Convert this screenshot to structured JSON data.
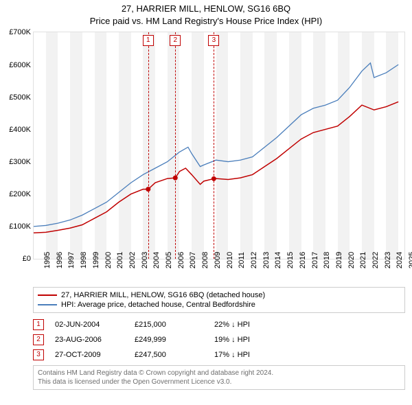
{
  "title": {
    "line1": "27, HARRIER MILL, HENLOW, SG16 6BQ",
    "line2": "Price paid vs. HM Land Registry's House Price Index (HPI)"
  },
  "chart": {
    "type": "line",
    "background_color": "#ffffff",
    "grid_color": "#e0e0e0",
    "shade_color": "#f2f2f2",
    "x": {
      "min": 1995,
      "max": 2025.5,
      "ticks": [
        1995,
        1996,
        1997,
        1998,
        1999,
        2000,
        2001,
        2002,
        2003,
        2004,
        2005,
        2006,
        2007,
        2008,
        2009,
        2010,
        2011,
        2012,
        2013,
        2014,
        2015,
        2016,
        2017,
        2018,
        2019,
        2020,
        2021,
        2022,
        2023,
        2024,
        2025
      ]
    },
    "y": {
      "min": 0,
      "max": 700000,
      "ticks": [
        0,
        100000,
        200000,
        300000,
        400000,
        500000,
        600000,
        700000
      ],
      "tick_labels": [
        "£0",
        "£100K",
        "£200K",
        "£300K",
        "£400K",
        "£500K",
        "£600K",
        "£700K"
      ]
    },
    "shaded_years": [
      1996,
      1998,
      2000,
      2002,
      2004,
      2006,
      2008,
      2010,
      2012,
      2014,
      2016,
      2018,
      2020,
      2022,
      2024
    ],
    "series": [
      {
        "name": "property",
        "color": "#c00000",
        "width": 1.5,
        "points": [
          [
            1995,
            80000
          ],
          [
            1996,
            82000
          ],
          [
            1997,
            88000
          ],
          [
            1998,
            95000
          ],
          [
            1999,
            105000
          ],
          [
            2000,
            125000
          ],
          [
            2001,
            145000
          ],
          [
            2002,
            175000
          ],
          [
            2003,
            200000
          ],
          [
            2004,
            215000
          ],
          [
            2004.42,
            215000
          ],
          [
            2005,
            235000
          ],
          [
            2006,
            248000
          ],
          [
            2006.65,
            249999
          ],
          [
            2007,
            270000
          ],
          [
            2007.5,
            280000
          ],
          [
            2008,
            260000
          ],
          [
            2008.7,
            230000
          ],
          [
            2009,
            240000
          ],
          [
            2009.82,
            247500
          ],
          [
            2010,
            248000
          ],
          [
            2011,
            245000
          ],
          [
            2012,
            250000
          ],
          [
            2013,
            260000
          ],
          [
            2014,
            285000
          ],
          [
            2015,
            310000
          ],
          [
            2016,
            340000
          ],
          [
            2017,
            370000
          ],
          [
            2018,
            390000
          ],
          [
            2019,
            400000
          ],
          [
            2020,
            410000
          ],
          [
            2021,
            440000
          ],
          [
            2022,
            475000
          ],
          [
            2023,
            460000
          ],
          [
            2024,
            470000
          ],
          [
            2025,
            485000
          ]
        ],
        "markers": [
          [
            2004.42,
            215000
          ],
          [
            2006.65,
            249999
          ],
          [
            2009.82,
            247500
          ]
        ]
      },
      {
        "name": "hpi",
        "color": "#4a7ebb",
        "width": 1.3,
        "points": [
          [
            1995,
            100000
          ],
          [
            1996,
            103000
          ],
          [
            1997,
            110000
          ],
          [
            1998,
            120000
          ],
          [
            1999,
            135000
          ],
          [
            2000,
            155000
          ],
          [
            2001,
            175000
          ],
          [
            2002,
            205000
          ],
          [
            2003,
            235000
          ],
          [
            2004,
            260000
          ],
          [
            2005,
            280000
          ],
          [
            2006,
            300000
          ],
          [
            2007,
            330000
          ],
          [
            2007.7,
            345000
          ],
          [
            2008,
            325000
          ],
          [
            2008.7,
            285000
          ],
          [
            2009,
            290000
          ],
          [
            2010,
            305000
          ],
          [
            2011,
            300000
          ],
          [
            2012,
            305000
          ],
          [
            2013,
            315000
          ],
          [
            2014,
            345000
          ],
          [
            2015,
            375000
          ],
          [
            2016,
            410000
          ],
          [
            2017,
            445000
          ],
          [
            2018,
            465000
          ],
          [
            2019,
            475000
          ],
          [
            2020,
            490000
          ],
          [
            2021,
            530000
          ],
          [
            2022,
            580000
          ],
          [
            2022.7,
            605000
          ],
          [
            2023,
            560000
          ],
          [
            2024,
            575000
          ],
          [
            2025,
            600000
          ]
        ]
      }
    ],
    "events": [
      {
        "n": "1",
        "x": 2004.42
      },
      {
        "n": "2",
        "x": 2006.65
      },
      {
        "n": "3",
        "x": 2009.82
      }
    ]
  },
  "legend": {
    "items": [
      {
        "color": "#c00000",
        "label": "27, HARRIER MILL, HENLOW, SG16 6BQ (detached house)"
      },
      {
        "color": "#4a7ebb",
        "label": "HPI: Average price, detached house, Central Bedfordshire"
      }
    ]
  },
  "events_table": [
    {
      "n": "1",
      "date": "02-JUN-2004",
      "price": "£215,000",
      "delta": "22% ↓ HPI"
    },
    {
      "n": "2",
      "date": "23-AUG-2006",
      "price": "£249,999",
      "delta": "19% ↓ HPI"
    },
    {
      "n": "3",
      "date": "27-OCT-2009",
      "price": "£247,500",
      "delta": "17% ↓ HPI"
    }
  ],
  "footer": {
    "line1": "Contains HM Land Registry data © Crown copyright and database right 2024.",
    "line2": "This data is licensed under the Open Government Licence v3.0."
  }
}
